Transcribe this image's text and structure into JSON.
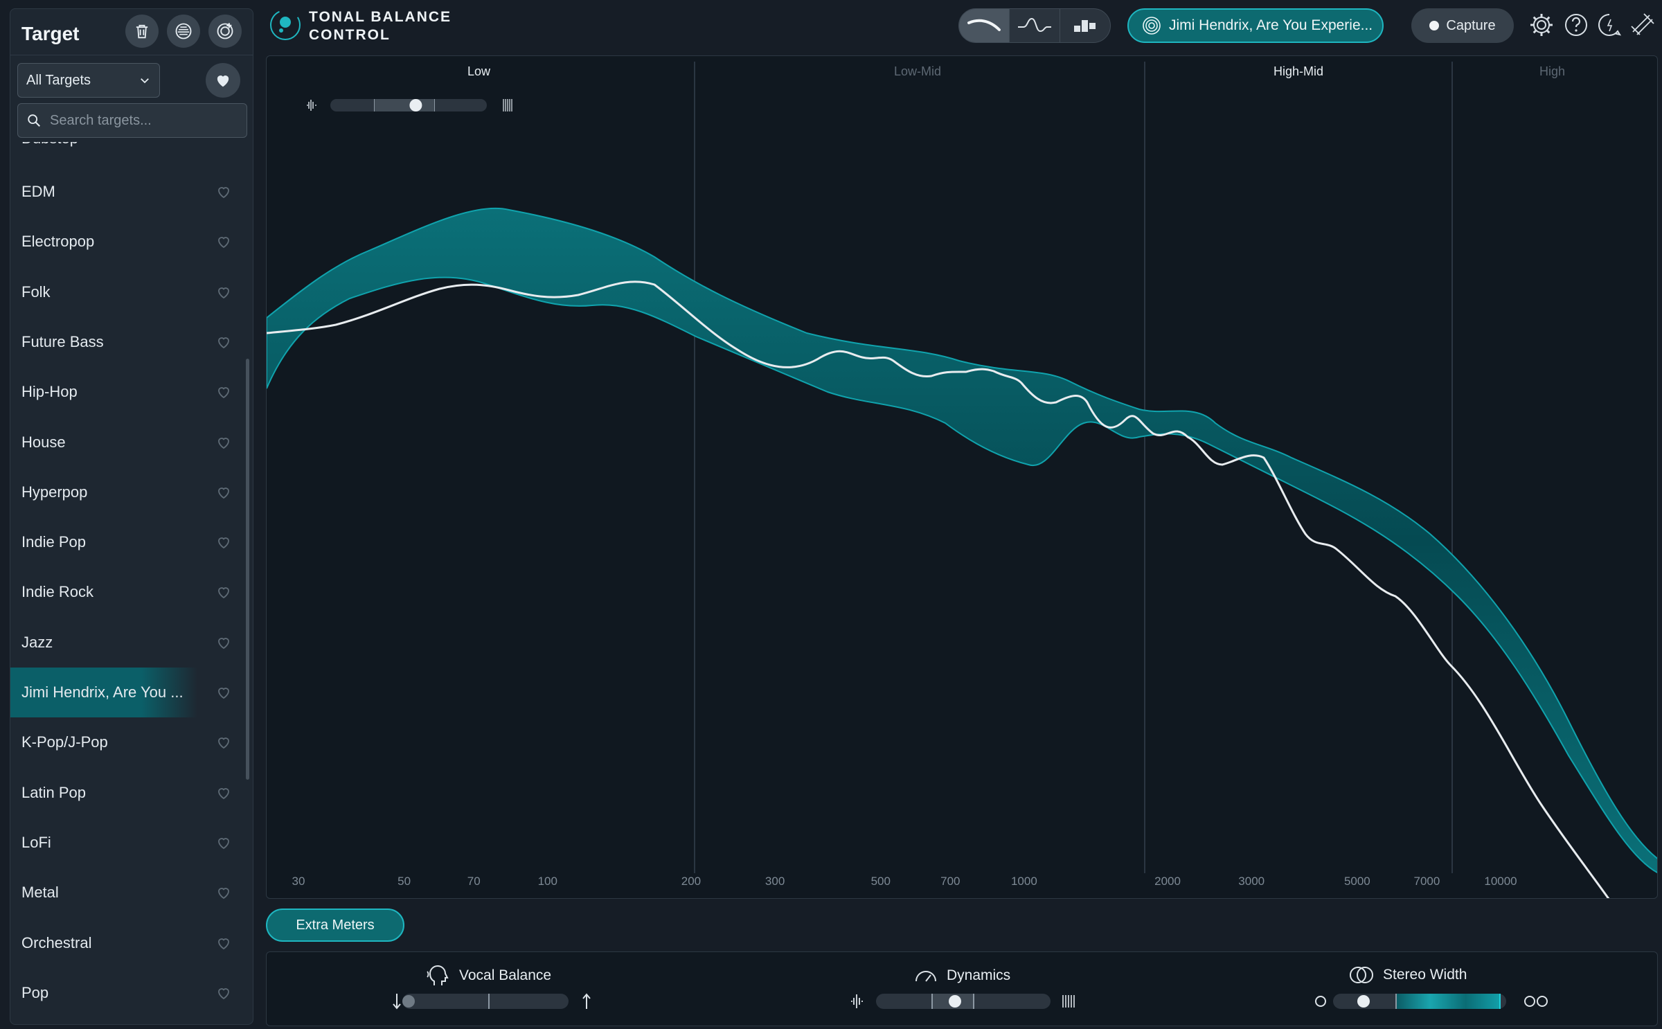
{
  "sidebar": {
    "title": "Target",
    "filter_value": "All Targets",
    "search_placeholder": "Search targets...",
    "partial_item": "Dubstep",
    "items": [
      {
        "label": "EDM"
      },
      {
        "label": "Electropop"
      },
      {
        "label": "Folk"
      },
      {
        "label": "Future Bass"
      },
      {
        "label": "Hip-Hop"
      },
      {
        "label": "House"
      },
      {
        "label": "Hyperpop"
      },
      {
        "label": "Indie Pop"
      },
      {
        "label": "Indie Rock"
      },
      {
        "label": "Jazz"
      },
      {
        "label": "Jimi Hendrix, Are You ..."
      },
      {
        "label": "K-Pop/J-Pop"
      },
      {
        "label": "Latin Pop"
      },
      {
        "label": "LoFi"
      },
      {
        "label": "Metal"
      },
      {
        "label": "Orchestral"
      },
      {
        "label": "Pop"
      }
    ],
    "selected_index": 10
  },
  "header": {
    "app_title_line1": "TONAL BALANCE",
    "app_title_line2": "CONTROL",
    "active_target": "Jimi Hendrix, Are You Experie...",
    "capture_label": "Capture",
    "accent": "#1fb6c0"
  },
  "graph": {
    "bands": [
      {
        "label": "Low",
        "active": true
      },
      {
        "label": "Low-Mid",
        "active": false
      },
      {
        "label": "High-Mid",
        "active": true
      },
      {
        "label": "High",
        "active": false
      }
    ],
    "freq_ticks": [
      "30",
      "50",
      "70",
      "100",
      "200",
      "300",
      "500",
      "700",
      "1000",
      "2000",
      "3000",
      "5000",
      "7000",
      "10000"
    ],
    "smoothing_level": 0.55
  },
  "extra_meters_label": "Extra Meters",
  "meters": {
    "vocal_balance": {
      "label": "Vocal Balance",
      "position": 0.0
    },
    "dynamics": {
      "label": "Dynamics",
      "position": 0.45
    },
    "stereo_width": {
      "label": "Stereo Width",
      "position": 0.15
    }
  }
}
